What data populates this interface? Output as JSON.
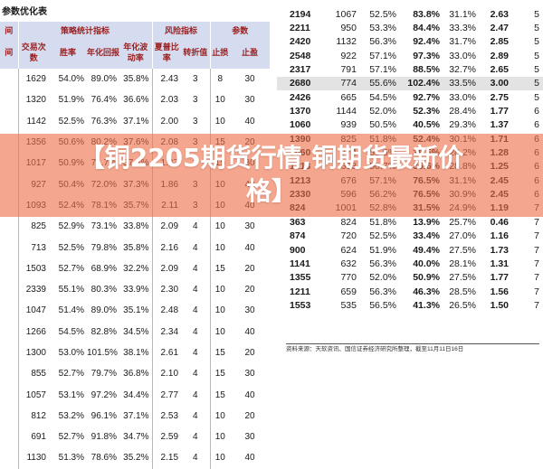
{
  "document": {
    "title": "参数优化表",
    "source_note": "资料来源：天软资讯、国信证券经济研究所整理，截至11月11日16日"
  },
  "left_table": {
    "groups": [
      "间",
      "策略统计指标",
      "风险指标",
      "参数"
    ],
    "subheaders": [
      "间",
      "交易次数",
      "胜率",
      "年化回报",
      "年化波动率",
      "夏普比率",
      "转折值",
      "止损",
      "止盈"
    ],
    "rows": [
      [
        "",
        "1629",
        "54.0%",
        "89.0%",
        "35.8%",
        "2.43",
        "3",
        "8",
        "30"
      ],
      [
        "",
        "1320",
        "51.9%",
        "76.4%",
        "36.6%",
        "2.03",
        "3",
        "10",
        "30"
      ],
      [
        "",
        "1142",
        "52.5%",
        "76.3%",
        "37.1%",
        "2.00",
        "3",
        "10",
        "40"
      ],
      [
        "",
        "1356",
        "50.6%",
        "80.2%",
        "37.6%",
        "2.08",
        "3",
        "15",
        "20"
      ],
      [
        "",
        "1017",
        "50.9%",
        "71.7%",
        "37.3%",
        "1.87",
        "3",
        "15",
        "30"
      ],
      [
        "",
        "927",
        "50.4%",
        "72.0%",
        "37.3%",
        "1.86",
        "3",
        "10",
        "40"
      ],
      [
        "",
        "1093",
        "52.4%",
        "78.1%",
        "35.7%",
        "2.11",
        "3",
        "10",
        "40"
      ],
      [
        "",
        "825",
        "52.9%",
        "73.1%",
        "33.8%",
        "2.09",
        "4",
        "10",
        "30"
      ],
      [
        "",
        "713",
        "52.5%",
        "79.8%",
        "35.8%",
        "2.16",
        "4",
        "10",
        "40"
      ],
      [
        "",
        "1503",
        "52.7%",
        "68.9%",
        "32.2%",
        "2.09",
        "4",
        "15",
        "20"
      ],
      [
        "",
        "2339",
        "55.1%",
        "80.3%",
        "33.9%",
        "2.30",
        "4",
        "10",
        "20"
      ],
      [
        "",
        "1047",
        "51.4%",
        "89.0%",
        "35.1%",
        "2.48",
        "4",
        "10",
        "30"
      ],
      [
        "",
        "1266",
        "54.5%",
        "82.8%",
        "34.5%",
        "2.34",
        "4",
        "10",
        "40"
      ],
      [
        "",
        "1300",
        "53.0%",
        "101.5%",
        "38.1%",
        "2.61",
        "4",
        "15",
        "20"
      ],
      [
        "",
        "855",
        "52.7%",
        "79.7%",
        "36.8%",
        "2.10",
        "4",
        "15",
        "30"
      ],
      [
        "",
        "1057",
        "53.1%",
        "97.2%",
        "34.4%",
        "2.77",
        "4",
        "15",
        "40"
      ],
      [
        "",
        "812",
        "53.2%",
        "96.1%",
        "37.1%",
        "2.53",
        "4",
        "10",
        "20"
      ],
      [
        "",
        "691",
        "52.7%",
        "91.8%",
        "34.7%",
        "2.59",
        "4",
        "10",
        "30"
      ],
      [
        "",
        "1130",
        "51.3%",
        "78.6%",
        "35.2%",
        "2.15",
        "4",
        "10",
        "40"
      ]
    ]
  },
  "right_table": {
    "highlight_row": 5,
    "rows": [
      [
        "2194",
        "1067",
        "52.5%",
        "83.8%",
        "31.1%",
        "2.63",
        "5"
      ],
      [
        "2211",
        "950",
        "53.3%",
        "84.4%",
        "33.3%",
        "2.47",
        "5"
      ],
      [
        "2420",
        "1132",
        "56.3%",
        "92.4%",
        "31.7%",
        "2.85",
        "5"
      ],
      [
        "2548",
        "922",
        "57.1%",
        "97.3%",
        "33.0%",
        "2.89",
        "5"
      ],
      [
        "2317",
        "791",
        "57.1%",
        "88.5%",
        "32.7%",
        "2.65",
        "5"
      ],
      [
        "2680",
        "774",
        "55.6%",
        "102.4%",
        "33.5%",
        "3.00",
        "5"
      ],
      [
        "2426",
        "665",
        "54.5%",
        "92.7%",
        "33.0%",
        "2.75",
        "5"
      ],
      [
        "1370",
        "1144",
        "52.0%",
        "52.3%",
        "28.4%",
        "1.77",
        "6"
      ],
      [
        "1060",
        "939",
        "50.5%",
        "40.5%",
        "29.3%",
        "1.37",
        "6"
      ],
      [
        "1390",
        "825",
        "51.8%",
        "52.4%",
        "30.1%",
        "1.71",
        "6"
      ],
      [
        "1060",
        "774",
        "51.5%",
        "36.5%",
        "28.2%",
        "1.28",
        "6"
      ],
      [
        "1213",
        "693",
        "50.7%",
        "36.6%",
        "28.8%",
        "1.25",
        "6"
      ],
      [
        "1213",
        "676",
        "57.1%",
        "76.5%",
        "31.1%",
        "2.45",
        "6"
      ],
      [
        "2330",
        "596",
        "56.2%",
        "76.5%",
        "30.9%",
        "2.45",
        "6"
      ],
      [
        "824",
        "1001",
        "52.8%",
        "31.5%",
        "24.9%",
        "1.19",
        "7"
      ],
      [
        "363",
        "824",
        "51.8%",
        "13.9%",
        "25.7%",
        "0.46",
        "7"
      ],
      [
        "874",
        "720",
        "52.5%",
        "33.4%",
        "27.0%",
        "1.16",
        "7"
      ],
      [
        "900",
        "624",
        "51.9%",
        "49.4%",
        "27.5%",
        "1.73",
        "7"
      ],
      [
        "1141",
        "632",
        "56.3%",
        "40.0%",
        "28.1%",
        "1.31",
        "7"
      ],
      [
        "1355",
        "770",
        "52.0%",
        "50.9%",
        "27.5%",
        "1.77",
        "7"
      ],
      [
        "1211",
        "659",
        "56.3%",
        "46.3%",
        "28.5%",
        "1.56",
        "7"
      ],
      [
        "1553",
        "535",
        "56.5%",
        "41.3%",
        "26.5%",
        "1.50",
        "7"
      ]
    ]
  },
  "overlay": {
    "headline_line1": "【铜2205期货行情,铜期货最新价",
    "headline_line2": "格】",
    "color": "#ed7048"
  }
}
